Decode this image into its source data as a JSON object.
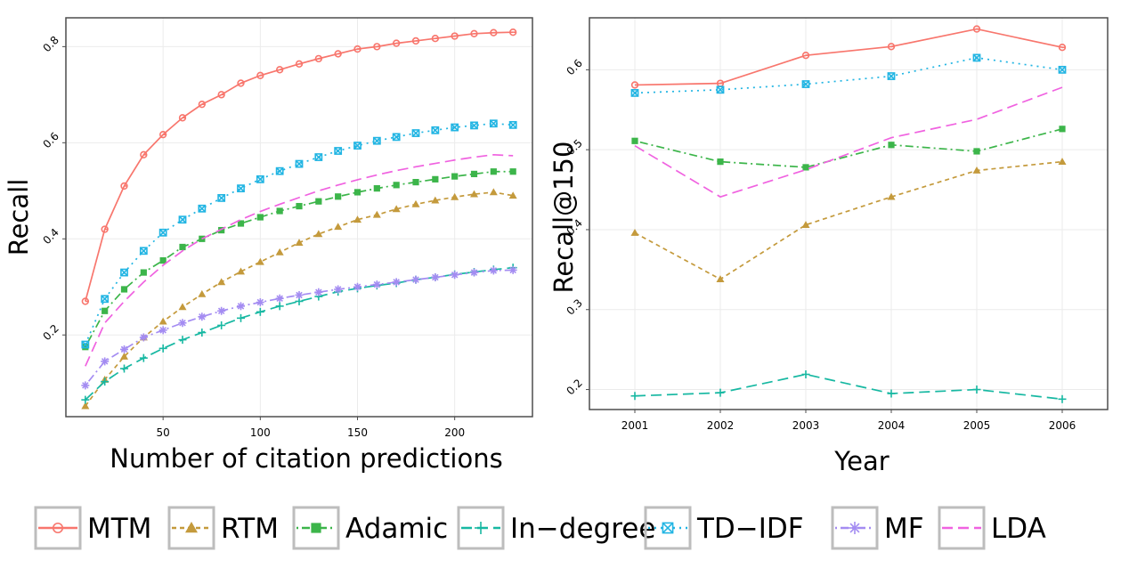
{
  "colors": {
    "MTM": "#f8766d",
    "RTM": "#c49a3c",
    "Adamic": "#3cb54a",
    "In-degree": "#17b8a2",
    "TD-IDF": "#22b5e3",
    "MF": "#a48cf2",
    "LDA": "#f062e0"
  },
  "legend": [
    {
      "key": "MTM",
      "label": "MTM",
      "marker": "open-circle-cross",
      "dash": "solid"
    },
    {
      "key": "RTM",
      "label": "RTM",
      "marker": "filled-triangle",
      "dash": "dashed"
    },
    {
      "key": "Adamic",
      "label": "Adamic",
      "marker": "filled-square",
      "dash": "dotdash"
    },
    {
      "key": "In-degree",
      "label": "In−degree",
      "marker": "plus",
      "dash": "longdash"
    },
    {
      "key": "TD-IDF",
      "label": "TD−IDF",
      "marker": "square-x",
      "dash": "dotted"
    },
    {
      "key": "MF",
      "label": "MF",
      "marker": "asterisk",
      "dash": "dotdash"
    },
    {
      "key": "LDA",
      "label": "LDA",
      "marker": "none",
      "dash": "longdash"
    }
  ],
  "chart_data": [
    {
      "type": "line",
      "xlabel": "Number of citation predictions",
      "ylabel": "Recall",
      "xlim": [
        0,
        240
      ],
      "ylim": [
        0.03,
        0.86
      ],
      "xticks": [
        50,
        100,
        150,
        200
      ],
      "yticks": [
        0.2,
        0.4,
        0.6,
        0.8
      ],
      "xticklabels": [
        "50",
        "100",
        "150",
        "200"
      ],
      "yticklabels": [
        "0.2",
        "0.4",
        "0.6",
        "0.8"
      ],
      "grid": true,
      "x": [
        10,
        20,
        30,
        40,
        50,
        60,
        70,
        80,
        90,
        100,
        110,
        120,
        130,
        140,
        150,
        160,
        170,
        180,
        190,
        200,
        210,
        220,
        230
      ],
      "series": [
        {
          "name": "MTM",
          "values": [
            0.27,
            0.42,
            0.51,
            0.575,
            0.617,
            0.652,
            0.68,
            0.7,
            0.724,
            0.74,
            0.752,
            0.764,
            0.775,
            0.785,
            0.795,
            0.8,
            0.807,
            0.812,
            0.817,
            0.822,
            0.827,
            0.829,
            0.83
          ]
        },
        {
          "name": "RTM",
          "values": [
            0.052,
            0.107,
            0.155,
            0.195,
            0.228,
            0.258,
            0.285,
            0.31,
            0.332,
            0.352,
            0.372,
            0.392,
            0.41,
            0.425,
            0.44,
            0.45,
            0.462,
            0.472,
            0.48,
            0.487,
            0.493,
            0.497,
            0.49
          ]
        },
        {
          "name": "Adamic",
          "values": [
            0.175,
            0.25,
            0.295,
            0.33,
            0.355,
            0.383,
            0.4,
            0.418,
            0.432,
            0.445,
            0.458,
            0.468,
            0.478,
            0.488,
            0.497,
            0.505,
            0.512,
            0.518,
            0.524,
            0.53,
            0.535,
            0.54,
            0.54
          ]
        },
        {
          "name": "In-degree",
          "values": [
            0.065,
            0.103,
            0.13,
            0.152,
            0.172,
            0.19,
            0.205,
            0.22,
            0.235,
            0.248,
            0.26,
            0.27,
            0.28,
            0.29,
            0.297,
            0.303,
            0.308,
            0.315,
            0.32,
            0.326,
            0.331,
            0.336,
            0.34
          ]
        },
        {
          "name": "TD-IDF",
          "values": [
            0.18,
            0.275,
            0.33,
            0.375,
            0.413,
            0.44,
            0.463,
            0.485,
            0.505,
            0.524,
            0.541,
            0.556,
            0.57,
            0.583,
            0.594,
            0.604,
            0.612,
            0.62,
            0.626,
            0.632,
            0.636,
            0.64,
            0.637
          ]
        },
        {
          "name": "MF",
          "values": [
            0.095,
            0.145,
            0.17,
            0.195,
            0.21,
            0.225,
            0.238,
            0.25,
            0.26,
            0.268,
            0.276,
            0.283,
            0.289,
            0.295,
            0.3,
            0.305,
            0.31,
            0.315,
            0.32,
            0.325,
            0.33,
            0.334,
            0.335
          ]
        },
        {
          "name": "LDA",
          "values": [
            0.135,
            0.225,
            0.27,
            0.31,
            0.345,
            0.375,
            0.4,
            0.42,
            0.44,
            0.457,
            0.472,
            0.486,
            0.5,
            0.512,
            0.523,
            0.533,
            0.542,
            0.55,
            0.557,
            0.564,
            0.57,
            0.575,
            0.573
          ]
        }
      ]
    },
    {
      "type": "line",
      "xlabel": "Year",
      "ylabel": "Recall@150",
      "ylim": [
        0.175,
        0.665
      ],
      "categories": [
        "2001",
        "2002",
        "2003",
        "2004",
        "2005",
        "2006"
      ],
      "yticks": [
        0.2,
        0.3,
        0.4,
        0.5,
        0.6
      ],
      "yticklabels": [
        "0.2",
        "0.3",
        "0.4",
        "0.5",
        "0.6"
      ],
      "grid": true,
      "series": [
        {
          "name": "MTM",
          "values": [
            0.581,
            0.583,
            0.618,
            0.629,
            0.651,
            0.628
          ]
        },
        {
          "name": "RTM",
          "values": [
            0.396,
            0.338,
            0.406,
            0.441,
            0.474,
            0.485
          ]
        },
        {
          "name": "Adamic",
          "values": [
            0.511,
            0.485,
            0.478,
            0.506,
            0.498,
            0.526
          ]
        },
        {
          "name": "In-degree",
          "values": [
            0.192,
            0.196,
            0.219,
            0.195,
            0.2,
            0.188
          ]
        },
        {
          "name": "TD-IDF",
          "values": [
            0.571,
            0.575,
            0.582,
            0.592,
            0.615,
            0.6
          ]
        },
        {
          "name": "MF",
          "values": [
            null,
            null,
            null,
            null,
            null,
            null
          ]
        },
        {
          "name": "LDA",
          "values": [
            0.505,
            0.441,
            0.475,
            0.515,
            0.538,
            0.578
          ]
        }
      ]
    }
  ]
}
